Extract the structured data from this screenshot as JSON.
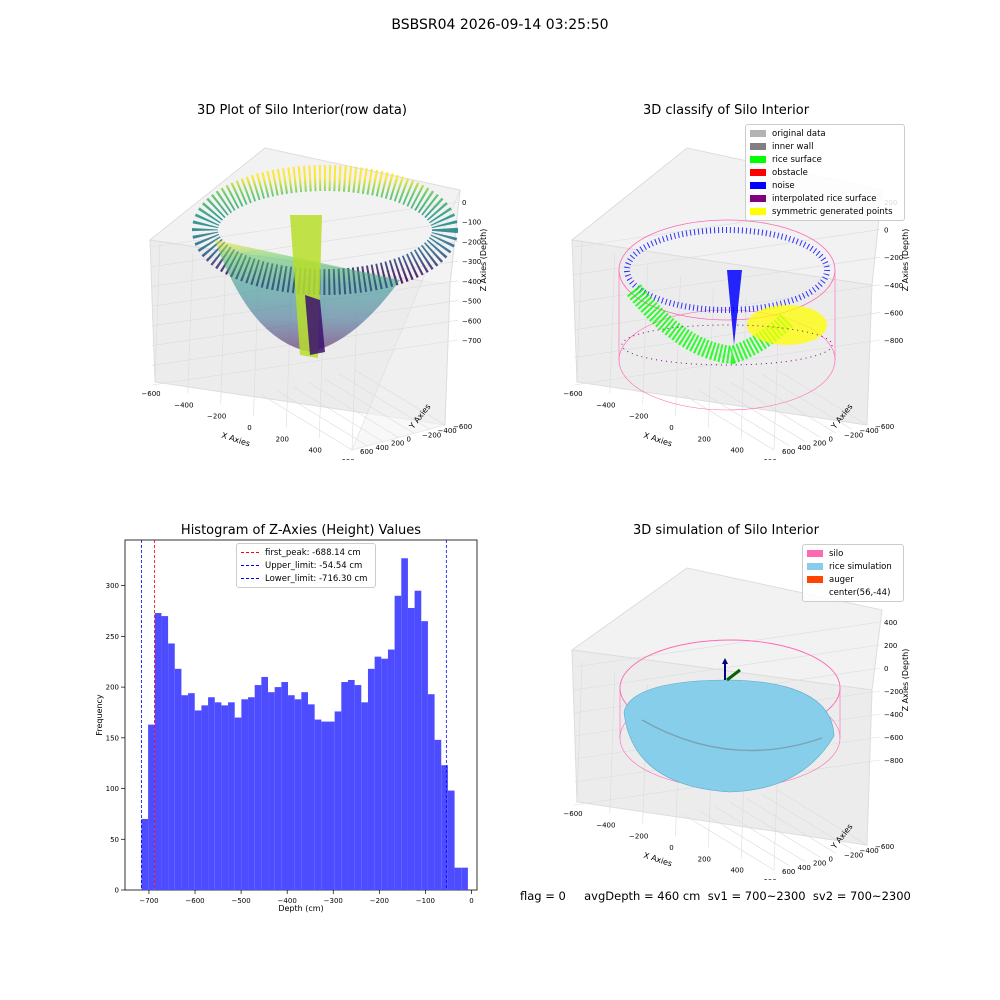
{
  "suptitle": "BSBSR04 2026-09-14 03:25:50",
  "footer": "flag = 0     avgDepth = 460 cm  sv1 = 700~2300  sv2 = 700~2300",
  "colors": {
    "original": "#b3b3b3",
    "inner_wall": "#808080",
    "rice_surface": "#00ff00",
    "obstacle": "#ff0000",
    "noise": "#0000ff",
    "interpolated": "#800080",
    "symmetric": "#ffff00",
    "silo": "#ff69b4",
    "rice_sim": "#87ceeb",
    "auger": "#ff4500",
    "hist_bar": "#4d4dff"
  },
  "panel1": {
    "title": "3D Plot of Silo Interior(row data)",
    "xlabel": "X Axies",
    "ylabel": "Y Axies",
    "zlabel": "Z Axies (Depth)",
    "xticks": [
      "-600",
      "-400",
      "-200",
      "0",
      "200",
      "400",
      "600"
    ],
    "yticks": [
      "-600",
      "-400",
      "-200",
      "0",
      "200",
      "400",
      "600"
    ],
    "zticks": [
      "0",
      "-100",
      "-200",
      "-300",
      "-400",
      "-500",
      "-600",
      "-700"
    ]
  },
  "panel2": {
    "title": "3D classify of Silo Interior",
    "xlabel": "X Axies",
    "ylabel": "Y Axies",
    "zlabel": "Z Axies (Depth)",
    "xticks": [
      "-600",
      "-400",
      "-200",
      "0",
      "200",
      "400",
      "600"
    ],
    "yticks": [
      "-600",
      "-400",
      "-200",
      "0",
      "200",
      "400",
      "600"
    ],
    "zticks": [
      "200",
      "0",
      "-200",
      "-400",
      "-600",
      "-800"
    ],
    "legend": [
      "original data",
      "inner wall",
      "rice surface",
      "obstacle",
      "noise",
      "interpolated rice surface",
      "symmetric generated points"
    ]
  },
  "panel4": {
    "title": "3D simulation of Silo Interior",
    "xlabel": "X Axies",
    "ylabel": "Y Axies",
    "zlabel": "Z Axies (Depth)",
    "xticks": [
      "-600",
      "-400",
      "-200",
      "0",
      "200",
      "400",
      "600"
    ],
    "yticks": [
      "-600",
      "-400",
      "-200",
      "0",
      "200",
      "400",
      "600"
    ],
    "zticks": [
      "400",
      "200",
      "0",
      "-200",
      "-400",
      "-600",
      "-800"
    ],
    "legend": [
      "silo",
      "rice simulation",
      "auger",
      "center(56,-44)"
    ]
  },
  "chart_data": {
    "type": "bar",
    "title": "Histogram of Z-Axies (Height) Values",
    "xlabel": "Depth (cm)",
    "ylabel": "Frequency",
    "xlim": [
      -752,
      12
    ],
    "ylim": [
      0,
      345
    ],
    "xticks": [
      -700,
      -600,
      -500,
      -400,
      -300,
      -200,
      -100,
      0
    ],
    "yticks": [
      0,
      50,
      100,
      150,
      200,
      250,
      300
    ],
    "bin_start": -716.3,
    "bin_width": 14.46,
    "values": [
      70,
      163,
      273,
      270,
      243,
      218,
      192,
      194,
      177,
      182,
      190,
      185,
      182,
      185,
      170,
      188,
      190,
      202,
      210,
      195,
      200,
      205,
      192,
      188,
      195,
      183,
      168,
      166,
      166,
      176,
      205,
      207,
      202,
      185,
      218,
      230,
      228,
      237,
      290,
      327,
      278,
      295,
      265,
      193,
      148,
      123,
      98,
      22,
      22
    ],
    "vlines": [
      {
        "label": "first_peak: -688.14 cm",
        "x": -688.14,
        "color": "#ff0000"
      },
      {
        "label": "Upper_limit: -54.54 cm",
        "x": -54.54,
        "color": "#0000ff"
      },
      {
        "label": "Lower_limit: -716.30 cm",
        "x": -716.3,
        "color": "#0000ff"
      }
    ]
  }
}
